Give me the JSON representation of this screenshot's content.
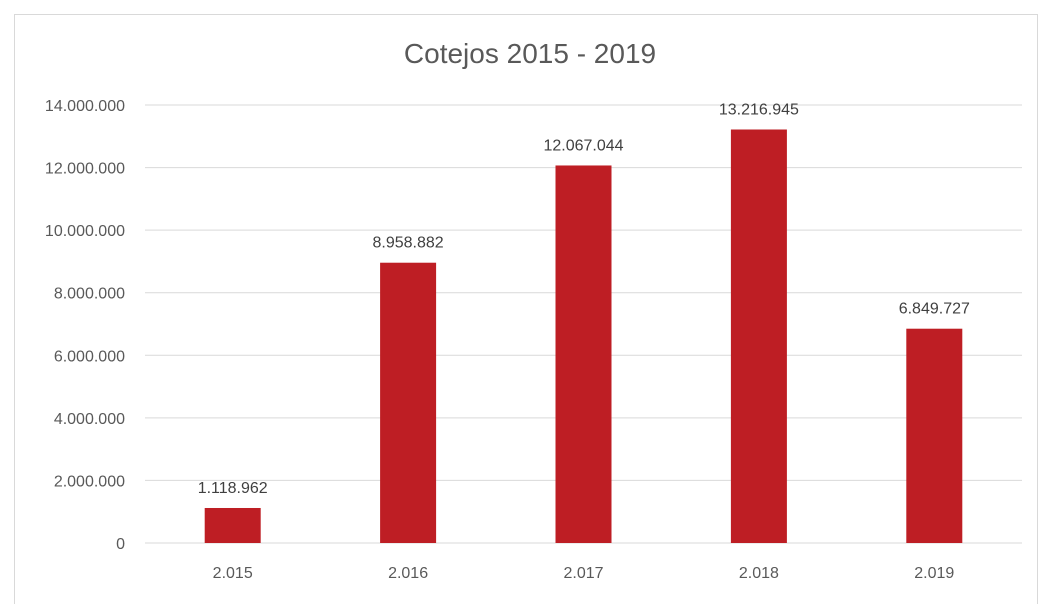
{
  "chart_data": {
    "type": "bar",
    "title": "Cotejos 2015 - 2019",
    "categories": [
      "2.015",
      "2.016",
      "2.017",
      "2.018",
      "2.019"
    ],
    "values": [
      1118962,
      8958882,
      12067044,
      13216945,
      6849727
    ],
    "data_labels": [
      "1.118.962",
      "8.958.882",
      "12.067.044",
      "13.216.945",
      "6.849.727"
    ],
    "xlabel": "",
    "ylabel": "",
    "ylim": [
      0,
      14000000
    ],
    "y_ticks": [
      0,
      2000000,
      4000000,
      6000000,
      8000000,
      10000000,
      12000000,
      14000000
    ],
    "y_tick_labels": [
      "0",
      "2.000.000",
      "4.000.000",
      "6.000.000",
      "8.000.000",
      "10.000.000",
      "12.000.000",
      "14.000.000"
    ],
    "grid": true,
    "legend": "none",
    "colors": {
      "bar": "#be1e24",
      "grid": "#d9d9d9",
      "text": "#595959"
    }
  }
}
